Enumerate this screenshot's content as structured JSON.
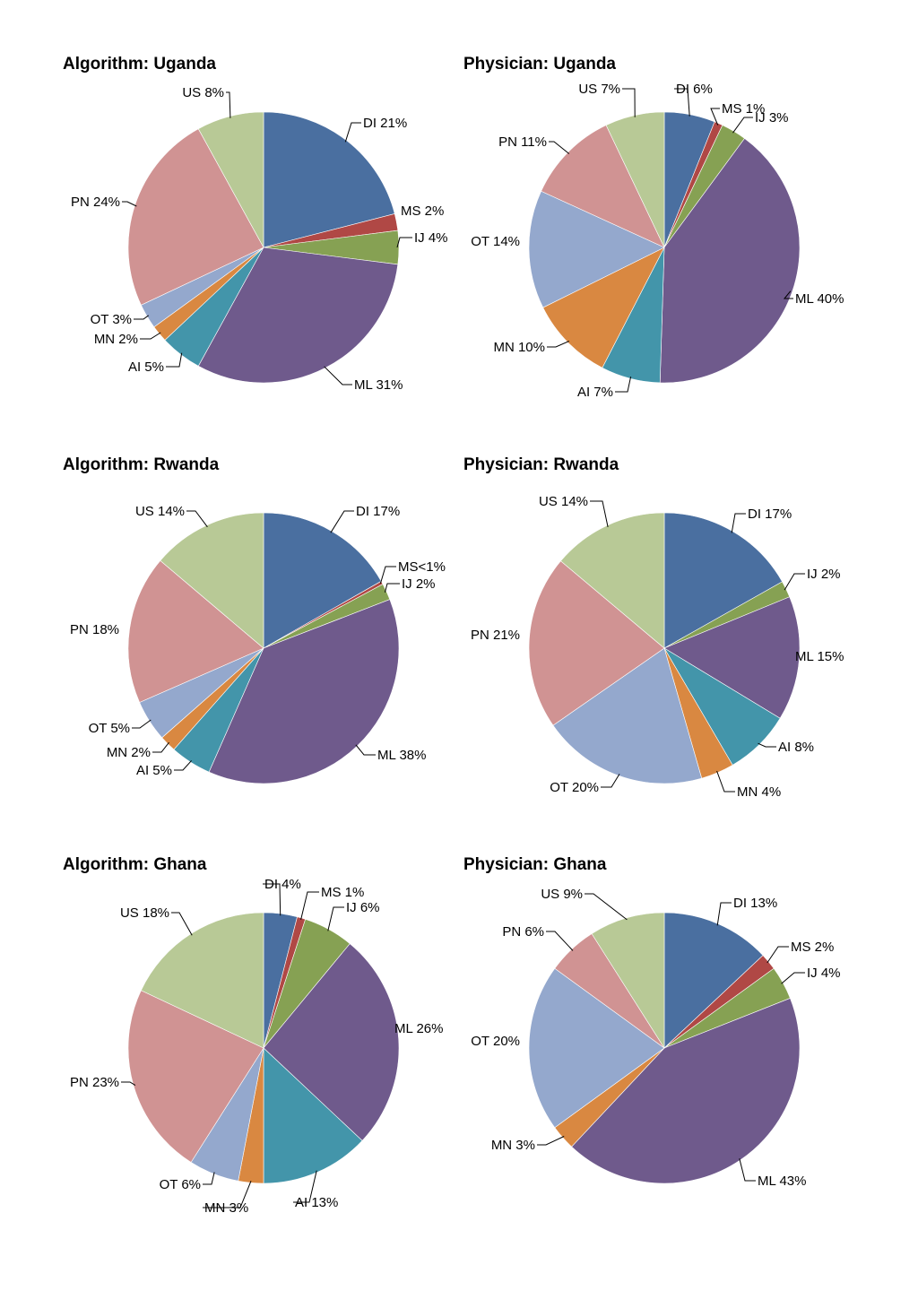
{
  "chart_data": [
    {
      "type": "pie",
      "title": "Algorithm: Uganda",
      "slices": [
        {
          "key": "DI",
          "label": "DI 21%",
          "value": 21
        },
        {
          "key": "MS",
          "label": "MS 2%",
          "value": 2
        },
        {
          "key": "IJ",
          "label": "IJ 4%",
          "value": 4
        },
        {
          "key": "ML",
          "label": "ML 31%",
          "value": 31
        },
        {
          "key": "AI",
          "label": "AI 5%",
          "value": 5
        },
        {
          "key": "MN",
          "label": "MN 2%",
          "value": 2
        },
        {
          "key": "OT",
          "label": "OT 3%",
          "value": 3
        },
        {
          "key": "PN",
          "label": "PN 24%",
          "value": 24
        },
        {
          "key": "US",
          "label": "US 8%",
          "value": 8
        }
      ]
    },
    {
      "type": "pie",
      "title": "Physician: Uganda",
      "slices": [
        {
          "key": "DI",
          "label": "DI 6%",
          "value": 6
        },
        {
          "key": "MS",
          "label": "MS 1%",
          "value": 1
        },
        {
          "key": "IJ",
          "label": "IJ 3%",
          "value": 3
        },
        {
          "key": "ML",
          "label": "ML 40%",
          "value": 40
        },
        {
          "key": "AI",
          "label": "AI 7%",
          "value": 7
        },
        {
          "key": "MN",
          "label": "MN 10%",
          "value": 10
        },
        {
          "key": "OT",
          "label": "OT 14%",
          "value": 14
        },
        {
          "key": "PN",
          "label": "PN 11%",
          "value": 11
        },
        {
          "key": "US",
          "label": "US 7%",
          "value": 7
        }
      ]
    },
    {
      "type": "pie",
      "title": "Algorithm: Rwanda",
      "slices": [
        {
          "key": "DI",
          "label": "DI 17%",
          "value": 17
        },
        {
          "key": "MS",
          "label": "MS<1%",
          "value": 0.4
        },
        {
          "key": "IJ",
          "label": "IJ 2%",
          "value": 2
        },
        {
          "key": "ML",
          "label": "ML 38%",
          "value": 38
        },
        {
          "key": "AI",
          "label": "AI 5%",
          "value": 5
        },
        {
          "key": "MN",
          "label": "MN 2%",
          "value": 2
        },
        {
          "key": "OT",
          "label": "OT 5%",
          "value": 5
        },
        {
          "key": "PN",
          "label": "PN 18%",
          "value": 18
        },
        {
          "key": "US",
          "label": "US 14%",
          "value": 14
        }
      ]
    },
    {
      "type": "pie",
      "title": "Physician: Rwanda",
      "slices": [
        {
          "key": "DI",
          "label": "DI 17%",
          "value": 17
        },
        {
          "key": "IJ",
          "label": "IJ 2%",
          "value": 2
        },
        {
          "key": "ML",
          "label": "ML 15%",
          "value": 15
        },
        {
          "key": "AI",
          "label": "AI 8%",
          "value": 8
        },
        {
          "key": "MN",
          "label": "MN 4%",
          "value": 4
        },
        {
          "key": "OT",
          "label": "OT 20%",
          "value": 20
        },
        {
          "key": "PN",
          "label": "PN 21%",
          "value": 21
        },
        {
          "key": "US",
          "label": "US 14%",
          "value": 14
        }
      ]
    },
    {
      "type": "pie",
      "title": "Algorithm: Ghana",
      "slices": [
        {
          "key": "DI",
          "label": "DI 4%",
          "value": 4
        },
        {
          "key": "MS",
          "label": "MS 1%",
          "value": 1
        },
        {
          "key": "IJ",
          "label": "IJ 6%",
          "value": 6
        },
        {
          "key": "ML",
          "label": "ML 26%",
          "value": 26
        },
        {
          "key": "AI",
          "label": "AI 13%",
          "value": 13
        },
        {
          "key": "MN",
          "label": "MN 3%",
          "value": 3
        },
        {
          "key": "OT",
          "label": "OT 6%",
          "value": 6
        },
        {
          "key": "PN",
          "label": "PN 23%",
          "value": 23
        },
        {
          "key": "US",
          "label": "US 18%",
          "value": 18
        }
      ]
    },
    {
      "type": "pie",
      "title": "Physician: Ghana",
      "slices": [
        {
          "key": "DI",
          "label": "DI 13%",
          "value": 13
        },
        {
          "key": "MS",
          "label": "MS 2%",
          "value": 2
        },
        {
          "key": "IJ",
          "label": "IJ 4%",
          "value": 4
        },
        {
          "key": "ML",
          "label": "ML 43%",
          "value": 43
        },
        {
          "key": "MN",
          "label": "MN 3%",
          "value": 3
        },
        {
          "key": "OT",
          "label": "OT 20%",
          "value": 20
        },
        {
          "key": "PN",
          "label": "PN 6%",
          "value": 6
        },
        {
          "key": "US",
          "label": "US 9%",
          "value": 9
        }
      ]
    }
  ],
  "category_colors": {
    "DI": "#4A6FA0",
    "MS": "#B04845",
    "IJ": "#86A153",
    "ML": "#6F5A8C",
    "AI": "#4395AA",
    "MN": "#D98841",
    "OT": "#94A8CD",
    "PN": "#D09393",
    "US": "#B8C996"
  }
}
